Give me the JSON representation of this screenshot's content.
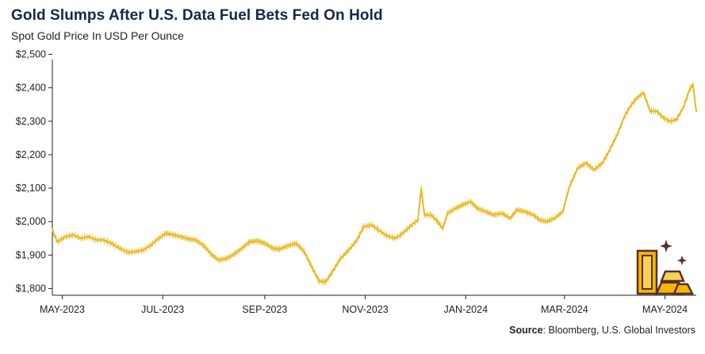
{
  "header": {
    "title": "Gold Slumps After U.S. Data Fuel Bets Fed On Hold",
    "subtitle": "Spot Gold Price In USD Per Ounce"
  },
  "footer": {
    "source_label": "Source",
    "source_text": ": Bloomberg, U.S. Global Investors"
  },
  "icons": {
    "decoration": "gold-bars-icon"
  },
  "colors": {
    "line": "#e8b923",
    "title": "#13284a",
    "axis": "#222222"
  },
  "chart_data": {
    "type": "line",
    "title": "Gold Slumps After U.S. Data Fuel Bets Fed On Hold",
    "subtitle": "Spot Gold Price In USD Per Ounce",
    "xlabel": "",
    "ylabel": "",
    "ylim": [
      1780,
      2520
    ],
    "xlim": [
      "2023-04-25",
      "2024-05-20"
    ],
    "grid": false,
    "legend": "none",
    "y_ticks": [
      {
        "value": 2500,
        "label": "$2,500"
      },
      {
        "value": 2400,
        "label": "$2,400"
      },
      {
        "value": 2300,
        "label": "$2,300"
      },
      {
        "value": 2200,
        "label": "$2,200"
      },
      {
        "value": 2100,
        "label": "$2,100"
      },
      {
        "value": 2000,
        "label": "$2,000"
      },
      {
        "value": 1900,
        "label": "$1,900"
      },
      {
        "value": 1800,
        "label": "$1,800"
      }
    ],
    "x_ticks": [
      {
        "date": "2023-05-01",
        "label": "MAY-2023"
      },
      {
        "date": "2023-07-01",
        "label": "JUL-2023"
      },
      {
        "date": "2023-09-01",
        "label": "SEP-2023"
      },
      {
        "date": "2023-11-01",
        "label": "NOV-2023"
      },
      {
        "date": "2024-01-01",
        "label": "JAN-2024"
      },
      {
        "date": "2024-03-01",
        "label": "MAR-2024"
      },
      {
        "date": "2024-05-01",
        "label": "MAY-2024"
      }
    ],
    "series": [
      {
        "color": "#e8b923",
        "points": [
          [
            "2023-04-25",
            1975
          ],
          [
            "2023-04-28",
            1940
          ],
          [
            "2023-05-03",
            1955
          ],
          [
            "2023-05-08",
            1960
          ],
          [
            "2023-05-12",
            1950
          ],
          [
            "2023-05-17",
            1955
          ],
          [
            "2023-05-22",
            1945
          ],
          [
            "2023-05-26",
            1945
          ],
          [
            "2023-05-31",
            1935
          ],
          [
            "2023-06-05",
            1920
          ],
          [
            "2023-06-10",
            1908
          ],
          [
            "2023-06-14",
            1910
          ],
          [
            "2023-06-19",
            1915
          ],
          [
            "2023-06-24",
            1930
          ],
          [
            "2023-06-28",
            1948
          ],
          [
            "2023-07-03",
            1965
          ],
          [
            "2023-07-08",
            1960
          ],
          [
            "2023-07-12",
            1955
          ],
          [
            "2023-07-17",
            1948
          ],
          [
            "2023-07-21",
            1945
          ],
          [
            "2023-07-26",
            1928
          ],
          [
            "2023-07-31",
            1900
          ],
          [
            "2023-08-04",
            1885
          ],
          [
            "2023-08-09",
            1890
          ],
          [
            "2023-08-14",
            1905
          ],
          [
            "2023-08-18",
            1920
          ],
          [
            "2023-08-23",
            1940
          ],
          [
            "2023-08-28",
            1942
          ],
          [
            "2023-09-01",
            1935
          ],
          [
            "2023-09-06",
            1920
          ],
          [
            "2023-09-10",
            1918
          ],
          [
            "2023-09-15",
            1928
          ],
          [
            "2023-09-20",
            1935
          ],
          [
            "2023-09-25",
            1910
          ],
          [
            "2023-09-30",
            1860
          ],
          [
            "2023-10-04",
            1822
          ],
          [
            "2023-10-08",
            1820
          ],
          [
            "2023-10-12",
            1850
          ],
          [
            "2023-10-17",
            1890
          ],
          [
            "2023-10-22",
            1915
          ],
          [
            "2023-10-27",
            1945
          ],
          [
            "2023-10-31",
            1985
          ],
          [
            "2023-11-05",
            1990
          ],
          [
            "2023-11-09",
            1975
          ],
          [
            "2023-11-14",
            1958
          ],
          [
            "2023-11-19",
            1950
          ],
          [
            "2023-11-23",
            1962
          ],
          [
            "2023-11-28",
            1985
          ],
          [
            "2023-12-03",
            2005
          ],
          [
            "2023-12-05",
            2098
          ],
          [
            "2023-12-07",
            2020
          ],
          [
            "2023-12-11",
            2020
          ],
          [
            "2023-12-15",
            2000
          ],
          [
            "2023-12-18",
            1980
          ],
          [
            "2023-12-21",
            2025
          ],
          [
            "2023-12-26",
            2040
          ],
          [
            "2023-12-30",
            2050
          ],
          [
            "2024-01-04",
            2060
          ],
          [
            "2024-01-08",
            2040
          ],
          [
            "2024-01-13",
            2030
          ],
          [
            "2024-01-18",
            2020
          ],
          [
            "2024-01-23",
            2025
          ],
          [
            "2024-01-28",
            2010
          ],
          [
            "2024-02-01",
            2035
          ],
          [
            "2024-02-06",
            2030
          ],
          [
            "2024-02-11",
            2020
          ],
          [
            "2024-02-15",
            2005
          ],
          [
            "2024-02-19",
            2000
          ],
          [
            "2024-02-24",
            2010
          ],
          [
            "2024-02-29",
            2030
          ],
          [
            "2024-03-04",
            2105
          ],
          [
            "2024-03-09",
            2160
          ],
          [
            "2024-03-14",
            2175
          ],
          [
            "2024-03-19",
            2155
          ],
          [
            "2024-03-24",
            2175
          ],
          [
            "2024-03-28",
            2210
          ],
          [
            "2024-04-02",
            2260
          ],
          [
            "2024-04-06",
            2310
          ],
          [
            "2024-04-10",
            2345
          ],
          [
            "2024-04-14",
            2370
          ],
          [
            "2024-04-18",
            2385
          ],
          [
            "2024-04-22",
            2330
          ],
          [
            "2024-04-26",
            2330
          ],
          [
            "2024-04-30",
            2310
          ],
          [
            "2024-05-04",
            2300
          ],
          [
            "2024-05-08",
            2305
          ],
          [
            "2024-05-12",
            2340
          ],
          [
            "2024-05-16",
            2395
          ],
          [
            "2024-05-18",
            2410
          ],
          [
            "2024-05-20",
            2330
          ]
        ]
      }
    ]
  }
}
